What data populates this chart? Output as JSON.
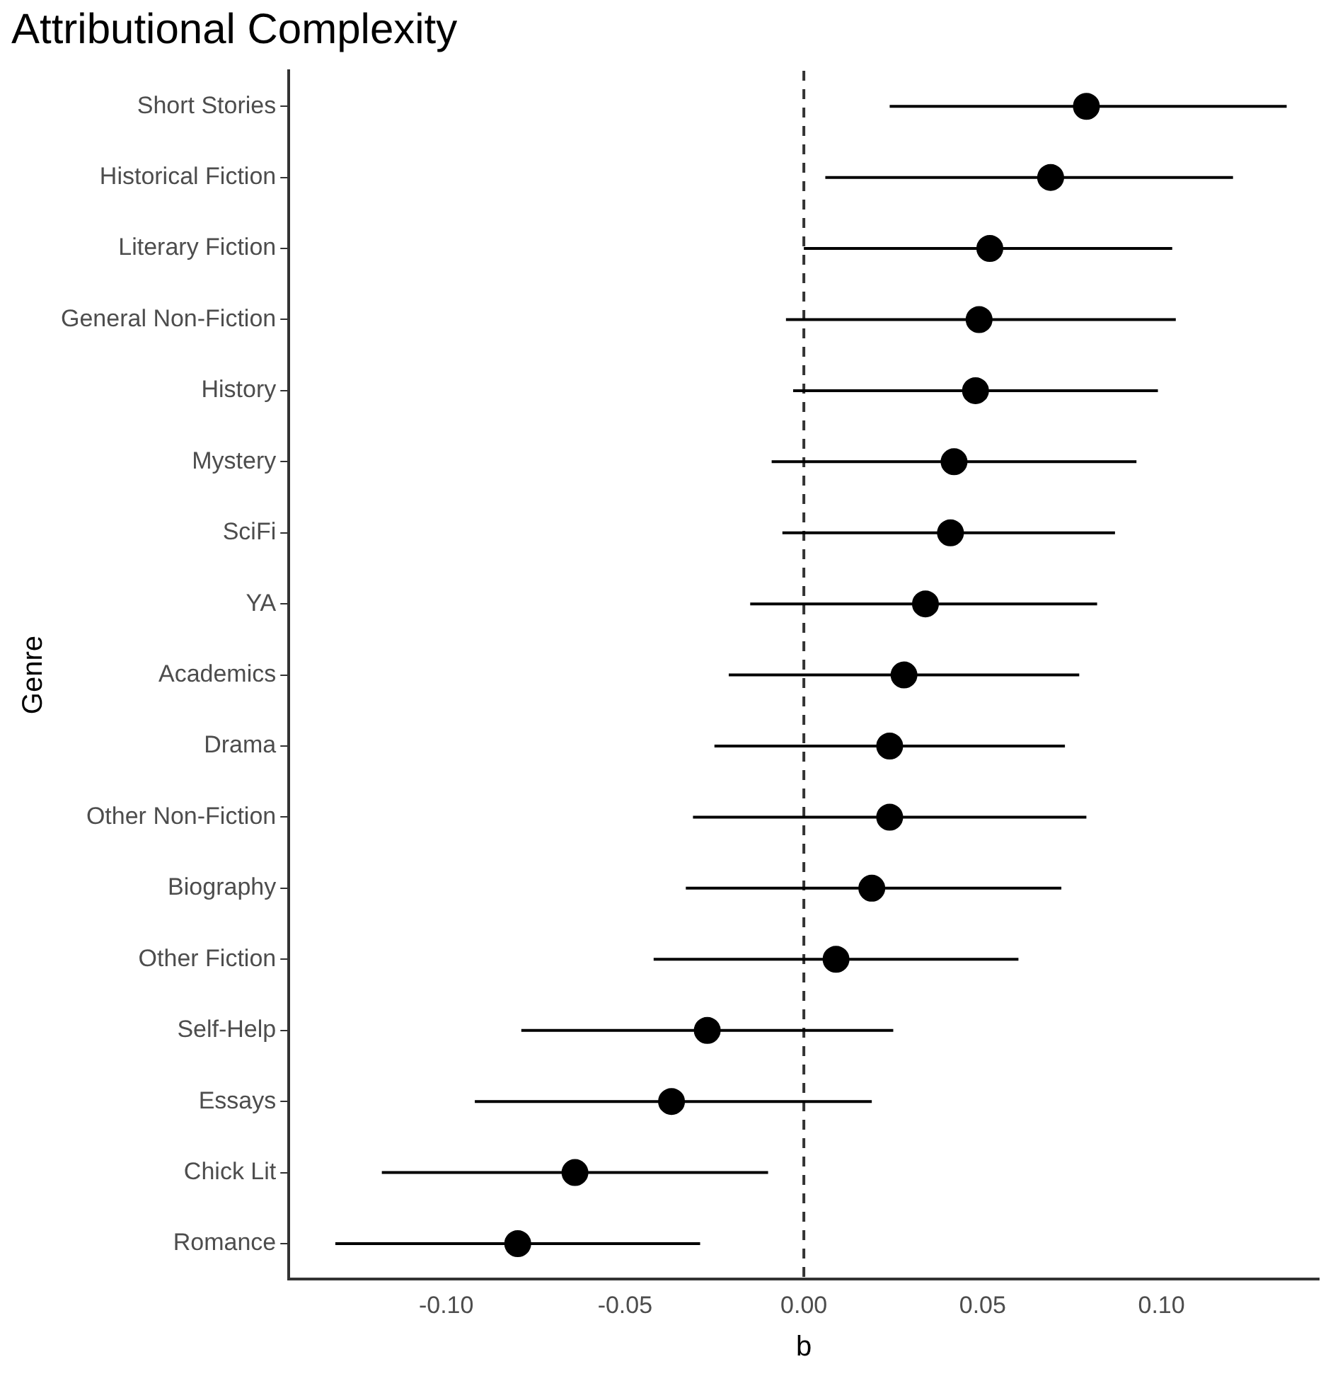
{
  "chart_data": {
    "type": "scatter",
    "title": "Attributional Complexity",
    "xlabel": "b",
    "ylabel": "Genre",
    "categories": [
      "Short Stories",
      "Historical Fiction",
      "Literary Fiction",
      "General Non-Fiction",
      "History",
      "Mystery",
      "SciFi",
      "YA",
      "Academics",
      "Drama",
      "Other Non-Fiction",
      "Biography",
      "Other Fiction",
      "Self-Help",
      "Essays",
      "Chick Lit",
      "Romance"
    ],
    "orientation": "horizontal",
    "series": [
      {
        "color": "#000000",
        "values": [
          0.079,
          0.069,
          0.052,
          0.049,
          0.048,
          0.042,
          0.041,
          0.034,
          0.028,
          0.024,
          0.024,
          0.019,
          0.009,
          -0.027,
          -0.037,
          -0.064,
          -0.08
        ],
        "errors": [
          [
            0.024,
            0.135
          ],
          [
            0.006,
            0.12
          ],
          [
            0.0,
            0.103
          ],
          [
            -0.005,
            0.104
          ],
          [
            -0.003,
            0.099
          ],
          [
            -0.009,
            0.093
          ],
          [
            -0.006,
            0.087
          ],
          [
            -0.015,
            0.082
          ],
          [
            -0.021,
            0.077
          ],
          [
            -0.025,
            0.073
          ],
          [
            -0.031,
            0.079
          ],
          [
            -0.033,
            0.072
          ],
          [
            -0.042,
            0.06
          ],
          [
            -0.079,
            0.025
          ],
          [
            -0.092,
            0.019
          ],
          [
            -0.118,
            -0.01
          ],
          [
            -0.131,
            -0.029
          ]
        ]
      }
    ],
    "xlim": [
      -0.144,
      0.144
    ],
    "xticks": [
      {
        "value": -0.1,
        "label": "-0.10"
      },
      {
        "value": -0.05,
        "label": "-0.05"
      },
      {
        "value": 0,
        "label": "0.00"
      },
      {
        "value": 0.05,
        "label": "0.05"
      },
      {
        "value": 0.1,
        "label": "0.10"
      }
    ],
    "ref_lines": [
      {
        "axis": "x",
        "value": 0,
        "color": "#333333",
        "line_style": "dashed"
      }
    ],
    "marker": "circle",
    "grid": false,
    "legend": false
  }
}
